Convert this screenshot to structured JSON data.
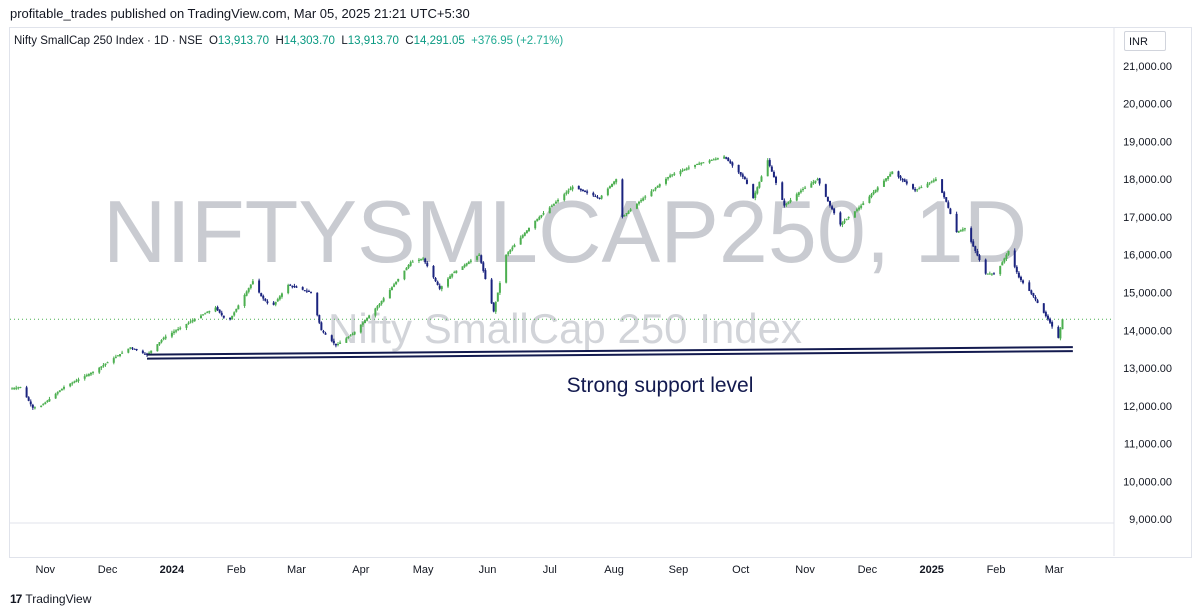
{
  "header": {
    "published": "profitable_trades published on TradingView.com, Mar 05, 2025 21:21 UTC+5:30"
  },
  "legend": {
    "symbol": "Nifty SmallCap 250 Index · 1D · NSE",
    "o_label": "O",
    "o_value": "13,913.70",
    "h_label": "H",
    "h_value": "14,303.70",
    "l_label": "L",
    "l_value": "13,913.70",
    "c_label": "C",
    "c_value": "14,291.05",
    "change": "+376.95 (+2.71%)"
  },
  "currency": "INR",
  "watermark": {
    "ticker": "NIFTYSMLCAP250, 1D",
    "name": "Nifty SmallCap 250 Index"
  },
  "annotation": "Strong support level",
  "footer": {
    "brand": "TradingView"
  },
  "colors": {
    "up": "#4caf50",
    "down": "#1a237e",
    "line": "#131a4f",
    "text": "#131722",
    "grid": "#e0e3eb",
    "watermark": "#c9cbd1"
  },
  "chart_data": {
    "type": "line",
    "title": "Nifty SmallCap 250 Index · 1D · NSE",
    "y_ticks": [
      9000,
      10000,
      11000,
      12000,
      13000,
      14000,
      15000,
      16000,
      17000,
      18000,
      19000,
      20000,
      21000
    ],
    "y_tick_labels": [
      "9,000.00",
      "10,000.00",
      "11,000.00",
      "12,000.00",
      "13,000.00",
      "14,000.00",
      "15,000.00",
      "16,000.00",
      "17,000.00",
      "18,000.00",
      "19,000.00",
      "20,000.00",
      "21,000.00"
    ],
    "ylim": [
      8900,
      22000
    ],
    "x_ticks": [
      "Nov",
      "Dec",
      "2024",
      "Feb",
      "Mar",
      "Apr",
      "May",
      "Jun",
      "Jul",
      "Aug",
      "Sep",
      "Oct",
      "Nov",
      "Dec",
      "2025",
      "Feb",
      "Mar"
    ],
    "x_tick_dates": [
      "2023-11-01",
      "2023-12-01",
      "2024-01-01",
      "2024-02-01",
      "2024-03-01",
      "2024-04-01",
      "2024-05-01",
      "2024-06-01",
      "2024-07-01",
      "2024-08-01",
      "2024-09-01",
      "2024-10-01",
      "2024-11-01",
      "2024-12-01",
      "2025-01-01",
      "2025-02-01",
      "2025-03-01"
    ],
    "xlim": [
      "2023-10-15",
      "2025-03-25"
    ],
    "series": [
      {
        "values": [
          [
            "2023-10-15",
            12450
          ],
          [
            "2023-10-20",
            12500
          ],
          [
            "2023-10-26",
            11950
          ],
          [
            "2023-10-30",
            12000
          ],
          [
            "2023-11-10",
            12500
          ],
          [
            "2023-11-24",
            12900
          ],
          [
            "2023-12-05",
            13300
          ],
          [
            "2023-12-12",
            13550
          ],
          [
            "2023-12-20",
            13350
          ],
          [
            "2023-12-28",
            13800
          ],
          [
            "2024-01-12",
            14300
          ],
          [
            "2024-01-22",
            14600
          ],
          [
            "2024-01-28",
            14200
          ],
          [
            "2024-02-09",
            15300
          ],
          [
            "2024-02-13",
            14900
          ],
          [
            "2024-02-18",
            14600
          ],
          [
            "2024-02-26",
            15200
          ],
          [
            "2024-03-08",
            15000
          ],
          [
            "2024-03-13",
            14000
          ],
          [
            "2024-03-20",
            13600
          ],
          [
            "2024-03-28",
            13900
          ],
          [
            "2024-04-10",
            14700
          ],
          [
            "2024-04-25",
            15800
          ],
          [
            "2024-05-01",
            15900
          ],
          [
            "2024-05-09",
            15100
          ],
          [
            "2024-05-15",
            15500
          ],
          [
            "2024-05-28",
            16000
          ],
          [
            "2024-06-04",
            14500
          ],
          [
            "2024-06-10",
            16000
          ],
          [
            "2024-06-24",
            16900
          ],
          [
            "2024-07-12",
            17800
          ],
          [
            "2024-07-25",
            17500
          ],
          [
            "2024-08-02",
            18000
          ],
          [
            "2024-08-05",
            17000
          ],
          [
            "2024-08-13",
            17400
          ],
          [
            "2024-08-28",
            18100
          ],
          [
            "2024-09-10",
            18400
          ],
          [
            "2024-09-23",
            18600
          ],
          [
            "2024-10-03",
            18000
          ],
          [
            "2024-10-07",
            17500
          ],
          [
            "2024-10-14",
            18500
          ],
          [
            "2024-10-22",
            17300
          ],
          [
            "2024-10-30",
            17700
          ],
          [
            "2024-11-07",
            18000
          ],
          [
            "2024-11-13",
            17300
          ],
          [
            "2024-11-18",
            16800
          ],
          [
            "2024-11-28",
            17300
          ],
          [
            "2024-12-13",
            18200
          ],
          [
            "2024-12-24",
            17700
          ],
          [
            "2025-01-03",
            18000
          ],
          [
            "2025-01-08",
            17400
          ],
          [
            "2025-01-13",
            16600
          ],
          [
            "2025-01-17",
            16700
          ],
          [
            "2025-01-27",
            15500
          ],
          [
            "2025-02-01",
            15500
          ],
          [
            "2025-02-07",
            16100
          ],
          [
            "2025-02-12",
            15400
          ],
          [
            "2025-02-19",
            14900
          ],
          [
            "2025-02-27",
            14200
          ],
          [
            "2025-03-03",
            13800
          ],
          [
            "2025-03-05",
            14291
          ]
        ]
      }
    ],
    "support_line": {
      "start": [
        "2023-12-20",
        13250
      ],
      "end": [
        "2025-03-10",
        13450
      ]
    },
    "last_price": 14291.05,
    "grid": false
  }
}
